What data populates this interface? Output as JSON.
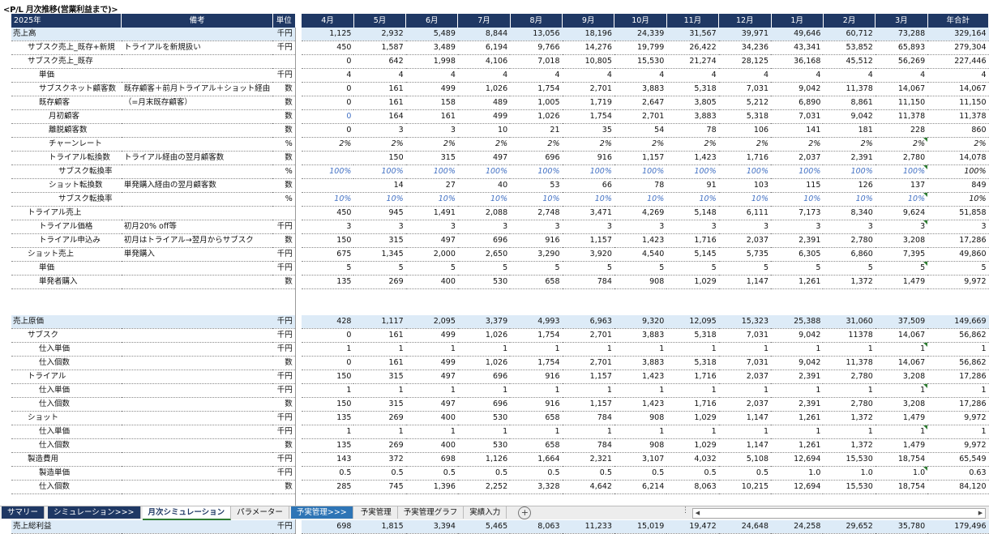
{
  "title": "<P/L 月次推移(営業利益まで)>",
  "header": {
    "year": "2025年",
    "note": "備考",
    "unit": "単位",
    "months": [
      "4月",
      "5月",
      "6月",
      "7月",
      "8月",
      "9月",
      "10月",
      "11月",
      "12月",
      "1月",
      "2月",
      "3月"
    ],
    "total": "年合計"
  },
  "rows": [
    {
      "label": "売上高",
      "indent": 0,
      "note": "",
      "unit": "千円",
      "vals": [
        "1,125",
        "2,932",
        "5,489",
        "8,844",
        "13,056",
        "18,196",
        "24,339",
        "31,567",
        "39,971",
        "49,646",
        "60,712",
        "73,288"
      ],
      "total": "329,164",
      "style": "blue"
    },
    {
      "label": "サブスク売上_既存+新規",
      "indent": 1,
      "note": "トライアルを新規扱い",
      "unit": "千円",
      "vals": [
        "450",
        "1,587",
        "3,489",
        "6,194",
        "9,766",
        "14,276",
        "19,799",
        "26,422",
        "34,236",
        "43,341",
        "53,852",
        "65,893"
      ],
      "total": "279,304"
    },
    {
      "label": "サブスク売上_既存",
      "indent": 1,
      "note": "",
      "unit": "",
      "vals": [
        "0",
        "642",
        "1,998",
        "4,106",
        "7,018",
        "10,805",
        "15,530",
        "21,274",
        "28,125",
        "36,168",
        "45,512",
        "56,269"
      ],
      "total": "227,446"
    },
    {
      "label": "単価",
      "indent": 2,
      "note": "",
      "unit": "千円",
      "vals": [
        "4",
        "4",
        "4",
        "4",
        "4",
        "4",
        "4",
        "4",
        "4",
        "4",
        "4",
        "4"
      ],
      "total": "4"
    },
    {
      "label": "サブスクネット顧客数",
      "indent": 2,
      "note": "既存顧客＋前月トライアル＋ショット経由",
      "unit": "数",
      "vals": [
        "0",
        "161",
        "499",
        "1,026",
        "1,754",
        "2,701",
        "3,883",
        "5,318",
        "7,031",
        "9,042",
        "11,378",
        "14,067"
      ],
      "total": "14,067"
    },
    {
      "label": "既存顧客",
      "indent": 2,
      "note": "（=月末既存顧客）",
      "unit": "数",
      "vals": [
        "0",
        "161",
        "158",
        "489",
        "1,005",
        "1,719",
        "2,647",
        "3,805",
        "5,212",
        "6,890",
        "8,861",
        "11,150"
      ],
      "total": "11,150"
    },
    {
      "label": "月初顧客",
      "indent": 3,
      "note": "",
      "unit": "数",
      "vals": [
        "0",
        "164",
        "161",
        "499",
        "1,026",
        "1,754",
        "2,701",
        "3,883",
        "5,318",
        "7,031",
        "9,042",
        "11,378"
      ],
      "total": "11,378",
      "firstBlue": true
    },
    {
      "label": "離脱顧客数",
      "indent": 3,
      "note": "",
      "unit": "数",
      "vals": [
        "0",
        "3",
        "3",
        "10",
        "21",
        "35",
        "54",
        "78",
        "106",
        "141",
        "181",
        "228"
      ],
      "total": "860"
    },
    {
      "label": "チャーンレート",
      "indent": 3,
      "note": "",
      "unit": "%",
      "vals": [
        "2%",
        "2%",
        "2%",
        "2%",
        "2%",
        "2%",
        "2%",
        "2%",
        "2%",
        "2%",
        "2%",
        "2%"
      ],
      "total": "2%",
      "italic": true,
      "mark": true
    },
    {
      "label": "トライアル転換数",
      "indent": 3,
      "note": "トライアル経由の翌月顧客数",
      "unit": "数",
      "vals": [
        "",
        "150",
        "315",
        "497",
        "696",
        "916",
        "1,157",
        "1,423",
        "1,716",
        "2,037",
        "2,391",
        "2,780"
      ],
      "total": "14,078"
    },
    {
      "label": "サブスク転換率",
      "indent": 4,
      "note": "",
      "unit": "%",
      "vals": [
        "100%",
        "100%",
        "100%",
        "100%",
        "100%",
        "100%",
        "100%",
        "100%",
        "100%",
        "100%",
        "100%",
        "100%"
      ],
      "total": "100%",
      "italic": true,
      "blue": true,
      "mark": true
    },
    {
      "label": "ショット転換数",
      "indent": 3,
      "note": "単発購入経由の翌月顧客数",
      "unit": "数",
      "vals": [
        "",
        "14",
        "27",
        "40",
        "53",
        "66",
        "78",
        "91",
        "103",
        "115",
        "126",
        "137"
      ],
      "total": "849"
    },
    {
      "label": "サブスク転換率",
      "indent": 4,
      "note": "",
      "unit": "%",
      "vals": [
        "10%",
        "10%",
        "10%",
        "10%",
        "10%",
        "10%",
        "10%",
        "10%",
        "10%",
        "10%",
        "10%",
        "10%"
      ],
      "total": "10%",
      "italic": true,
      "blue": true,
      "mark": true
    },
    {
      "label": "トライアル売上",
      "indent": 1,
      "note": "",
      "unit": "",
      "vals": [
        "450",
        "945",
        "1,491",
        "2,088",
        "2,748",
        "3,471",
        "4,269",
        "5,148",
        "6,111",
        "7,173",
        "8,340",
        "9,624"
      ],
      "total": "51,858"
    },
    {
      "label": "トライアル価格",
      "indent": 2,
      "note": "初月20% off等",
      "unit": "千円",
      "vals": [
        "3",
        "3",
        "3",
        "3",
        "3",
        "3",
        "3",
        "3",
        "3",
        "3",
        "3",
        "3"
      ],
      "total": "3",
      "mark": true
    },
    {
      "label": "トライアル申込み",
      "indent": 2,
      "note": "初月はトライアル→翌月からサブスク",
      "unit": "数",
      "vals": [
        "150",
        "315",
        "497",
        "696",
        "916",
        "1,157",
        "1,423",
        "1,716",
        "2,037",
        "2,391",
        "2,780",
        "3,208"
      ],
      "total": "17,286"
    },
    {
      "label": "ショット売上",
      "indent": 1,
      "note": "単発購入",
      "unit": "千円",
      "vals": [
        "675",
        "1,345",
        "2,000",
        "2,650",
        "3,290",
        "3,920",
        "4,540",
        "5,145",
        "5,735",
        "6,305",
        "6,860",
        "7,395"
      ],
      "total": "49,860"
    },
    {
      "label": "単価",
      "indent": 2,
      "note": "",
      "unit": "千円",
      "vals": [
        "5",
        "5",
        "5",
        "5",
        "5",
        "5",
        "5",
        "5",
        "5",
        "5",
        "5",
        "5"
      ],
      "total": "5",
      "mark": true
    },
    {
      "label": "単発者購入",
      "indent": 2,
      "note": "",
      "unit": "数",
      "vals": [
        "135",
        "269",
        "400",
        "530",
        "658",
        "784",
        "908",
        "1,029",
        "1,147",
        "1,261",
        "1,372",
        "1,479"
      ],
      "total": "9,972"
    },
    {
      "blank": true
    },
    {
      "blank": true
    },
    {
      "label": "売上原価",
      "indent": 0,
      "note": "",
      "unit": "千円",
      "vals": [
        "428",
        "1,117",
        "2,095",
        "3,379",
        "4,993",
        "6,963",
        "9,320",
        "12,095",
        "15,323",
        "25,388",
        "31,060",
        "37,509"
      ],
      "total": "149,669",
      "style": "blue"
    },
    {
      "label": "サブスク",
      "indent": 1,
      "note": "",
      "unit": "千円",
      "vals": [
        "0",
        "161",
        "499",
        "1,026",
        "1,754",
        "2,701",
        "3,883",
        "5,318",
        "7,031",
        "9,042",
        "11378",
        "14,067"
      ],
      "total": "56,862"
    },
    {
      "label": "仕入単価",
      "indent": 2,
      "note": "",
      "unit": "千円",
      "vals": [
        "1",
        "1",
        "1",
        "1",
        "1",
        "1",
        "1",
        "1",
        "1",
        "1",
        "1",
        "1"
      ],
      "total": "1",
      "mark": true
    },
    {
      "label": "仕入個数",
      "indent": 2,
      "note": "",
      "unit": "数",
      "vals": [
        "0",
        "161",
        "499",
        "1,026",
        "1,754",
        "2,701",
        "3,883",
        "5,318",
        "7,031",
        "9,042",
        "11,378",
        "14,067"
      ],
      "total": "56,862"
    },
    {
      "label": "トライアル",
      "indent": 1,
      "note": "",
      "unit": "千円",
      "vals": [
        "150",
        "315",
        "497",
        "696",
        "916",
        "1,157",
        "1,423",
        "1,716",
        "2,037",
        "2,391",
        "2,780",
        "3,208"
      ],
      "total": "17,286"
    },
    {
      "label": "仕入単価",
      "indent": 2,
      "note": "",
      "unit": "千円",
      "vals": [
        "1",
        "1",
        "1",
        "1",
        "1",
        "1",
        "1",
        "1",
        "1",
        "1",
        "1",
        "1"
      ],
      "total": "1",
      "mark": true
    },
    {
      "label": "仕入個数",
      "indent": 2,
      "note": "",
      "unit": "数",
      "vals": [
        "150",
        "315",
        "497",
        "696",
        "916",
        "1,157",
        "1,423",
        "1,716",
        "2,037",
        "2,391",
        "2,780",
        "3,208"
      ],
      "total": "17,286"
    },
    {
      "label": "ショット",
      "indent": 1,
      "note": "",
      "unit": "千円",
      "vals": [
        "135",
        "269",
        "400",
        "530",
        "658",
        "784",
        "908",
        "1,029",
        "1,147",
        "1,261",
        "1,372",
        "1,479"
      ],
      "total": "9,972"
    },
    {
      "label": "仕入単価",
      "indent": 2,
      "note": "",
      "unit": "千円",
      "vals": [
        "1",
        "1",
        "1",
        "1",
        "1",
        "1",
        "1",
        "1",
        "1",
        "1",
        "1",
        "1"
      ],
      "total": "1",
      "mark": true
    },
    {
      "label": "仕入個数",
      "indent": 2,
      "note": "",
      "unit": "数",
      "vals": [
        "135",
        "269",
        "400",
        "530",
        "658",
        "784",
        "908",
        "1,029",
        "1,147",
        "1,261",
        "1,372",
        "1,479"
      ],
      "total": "9,972"
    },
    {
      "label": "製造費用",
      "indent": 1,
      "note": "",
      "unit": "千円",
      "vals": [
        "143",
        "372",
        "698",
        "1,126",
        "1,664",
        "2,321",
        "3,107",
        "4,032",
        "5,108",
        "12,694",
        "15,530",
        "18,754"
      ],
      "total": "65,549"
    },
    {
      "label": "製造単価",
      "indent": 2,
      "note": "",
      "unit": "千円",
      "vals": [
        "0.5",
        "0.5",
        "0.5",
        "0.5",
        "0.5",
        "0.5",
        "0.5",
        "0.5",
        "0.5",
        "1.0",
        "1.0",
        "1.0"
      ],
      "total": "0.63",
      "mark": true
    },
    {
      "label": "仕入個数",
      "indent": 2,
      "note": "",
      "unit": "数",
      "vals": [
        "285",
        "745",
        "1,396",
        "2,252",
        "3,328",
        "4,642",
        "6,214",
        "8,063",
        "10,215",
        "12,694",
        "15,530",
        "18,754"
      ],
      "total": "84,120"
    },
    {
      "blank": true
    },
    {
      "blank": true
    },
    {
      "label": "売上総利益",
      "indent": 0,
      "note": "",
      "unit": "千円",
      "vals": [
        "698",
        "1,815",
        "3,394",
        "5,465",
        "8,063",
        "11,233",
        "15,019",
        "19,472",
        "24,648",
        "24,258",
        "29,652",
        "35,780"
      ],
      "total": "179,496",
      "style": "blue"
    }
  ],
  "tabs": [
    {
      "label": "サマリー",
      "style": "dark"
    },
    {
      "label": "シミュレーション>>>",
      "style": "dark"
    },
    {
      "label": "月次シミュレーション",
      "style": "active"
    },
    {
      "label": "パラメーター",
      "style": ""
    },
    {
      "label": "予実管理>>>",
      "style": "blue"
    },
    {
      "label": "予実管理",
      "style": ""
    },
    {
      "label": "予実管理グラフ",
      "style": ""
    },
    {
      "label": "実績入力",
      "style": ""
    }
  ],
  "add_sheet": "+",
  "scroll": {
    "left": "◀",
    "right": "▶",
    "dots": "⋮"
  }
}
